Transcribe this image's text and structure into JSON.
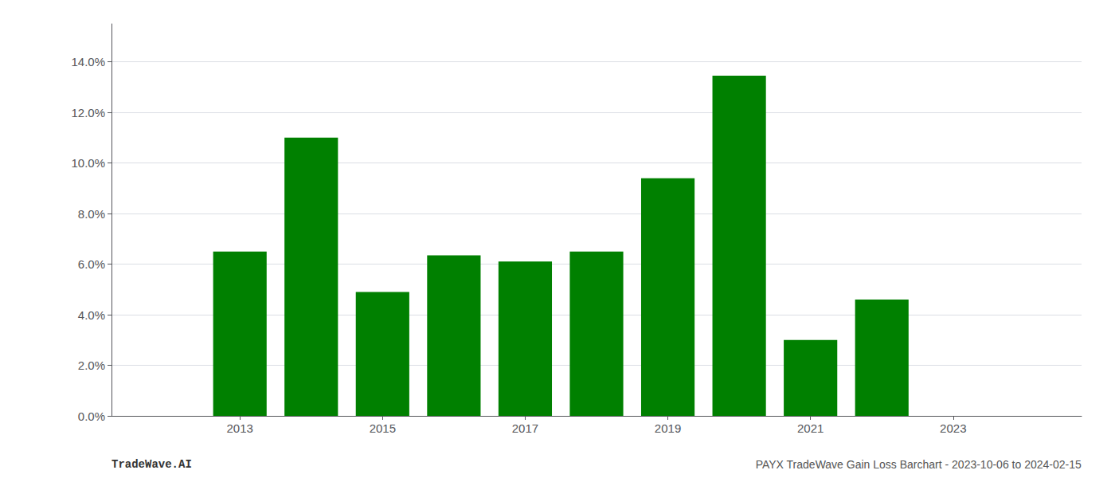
{
  "chart_data": {
    "type": "bar",
    "x": [
      2013,
      2014,
      2015,
      2016,
      2017,
      2018,
      2019,
      2020,
      2021,
      2022
    ],
    "values": [
      0.065,
      0.11,
      0.049,
      0.0635,
      0.061,
      0.065,
      0.094,
      0.1345,
      0.03,
      0.046
    ],
    "color": "#008000",
    "xlim": [
      2011.2,
      2024.8
    ],
    "xticks": [
      2013,
      2015,
      2017,
      2019,
      2021,
      2023
    ],
    "ylim": [
      0,
      0.155
    ],
    "yticks": [
      {
        "value": 0.0,
        "label": "0.0%"
      },
      {
        "value": 0.02,
        "label": "2.0%"
      },
      {
        "value": 0.04,
        "label": "4.0%"
      },
      {
        "value": 0.06,
        "label": "6.0%"
      },
      {
        "value": 0.08,
        "label": "8.0%"
      },
      {
        "value": 0.1,
        "label": "10.0%"
      },
      {
        "value": 0.12,
        "label": "12.0%"
      },
      {
        "value": 0.14,
        "label": "14.0%"
      }
    ],
    "grid": true,
    "annotations": [
      "TradeWave.AI",
      "PAYX TradeWave Gain Loss Barchart - 2023-10-06 to 2024-02-15"
    ]
  }
}
